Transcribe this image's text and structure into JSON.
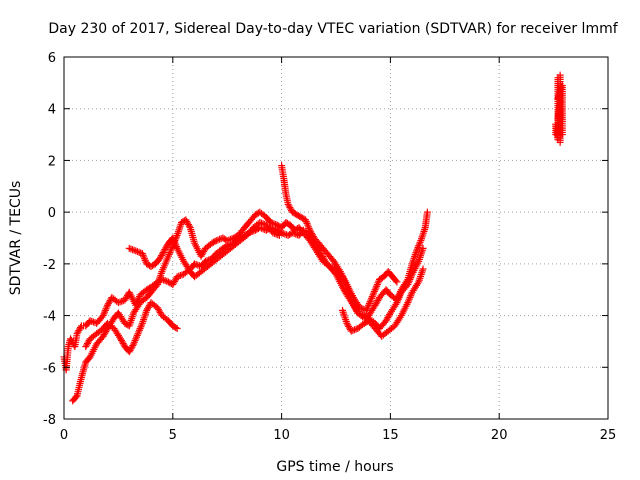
{
  "chart_data": {
    "type": "scatter",
    "title": "Day 230 of 2017, Sidereal Day-to-day VTEC variation (SDTVAR) for receiver lmmf",
    "xlabel": "GPS time / hours",
    "ylabel": "SDTVAR / TECUs",
    "xlim": [
      0,
      25
    ],
    "ylim": [
      -8,
      6
    ],
    "xticks": [
      "0",
      "5",
      "10",
      "15",
      "20",
      "25"
    ],
    "yticks": [
      "-8",
      "-6",
      "-4",
      "-2",
      "0",
      "2",
      "4",
      "6"
    ],
    "grid": true,
    "marker": "+",
    "color": "#ff0000",
    "series": [
      {
        "name": "",
        "points": [
          [
            0.0,
            -5.6
          ],
          [
            0.1,
            -6.1
          ],
          [
            0.2,
            -5.2
          ],
          [
            0.3,
            -4.9
          ],
          [
            0.5,
            -5.2
          ],
          [
            0.6,
            -4.7
          ],
          [
            0.8,
            -4.4
          ],
          [
            1.0,
            -4.4
          ],
          [
            1.2,
            -4.2
          ],
          [
            1.5,
            -4.3
          ],
          [
            1.8,
            -4.0
          ],
          [
            2.0,
            -3.6
          ],
          [
            2.2,
            -3.3
          ],
          [
            2.5,
            -3.5
          ],
          [
            2.8,
            -3.4
          ],
          [
            3.0,
            -3.1
          ],
          [
            3.3,
            -3.6
          ],
          [
            3.5,
            -3.2
          ],
          [
            3.8,
            -3.0
          ],
          [
            4.0,
            -2.9
          ],
          [
            4.3,
            -2.7
          ],
          [
            4.5,
            -2.6
          ],
          [
            4.8,
            -2.7
          ],
          [
            5.0,
            -2.8
          ],
          [
            5.2,
            -2.5
          ],
          [
            5.5,
            -2.4
          ],
          [
            5.8,
            -2.2
          ],
          [
            6.0,
            -2.0
          ],
          [
            6.3,
            -2.1
          ],
          [
            6.5,
            -1.9
          ],
          [
            6.8,
            -1.8
          ],
          [
            7.0,
            -1.6
          ],
          [
            7.3,
            -1.4
          ],
          [
            7.5,
            -1.3
          ],
          [
            7.8,
            -1.2
          ],
          [
            8.0,
            -1.0
          ],
          [
            8.3,
            -0.9
          ],
          [
            8.5,
            -0.8
          ],
          [
            8.8,
            -0.7
          ],
          [
            9.0,
            -0.6
          ],
          [
            9.3,
            -0.7
          ],
          [
            9.5,
            -0.6
          ],
          [
            9.8,
            -0.7
          ],
          [
            10.0,
            -0.8
          ],
          [
            10.3,
            -0.9
          ],
          [
            10.5,
            -0.8
          ],
          [
            10.8,
            -0.9
          ],
          [
            11.0,
            -0.7
          ],
          [
            11.3,
            -0.9
          ],
          [
            11.5,
            -1.2
          ],
          [
            11.8,
            -1.6
          ],
          [
            12.0,
            -1.9
          ],
          [
            12.3,
            -2.2
          ],
          [
            12.5,
            -2.4
          ],
          [
            12.8,
            -2.9
          ],
          [
            13.0,
            -3.2
          ],
          [
            13.3,
            -3.6
          ],
          [
            13.5,
            -3.9
          ],
          [
            13.8,
            -4.0
          ],
          [
            14.0,
            -4.1
          ],
          [
            14.3,
            -4.3
          ],
          [
            14.5,
            -4.5
          ],
          [
            14.8,
            -4.2
          ],
          [
            15.0,
            -3.9
          ],
          [
            15.3,
            -3.5
          ],
          [
            15.5,
            -3.1
          ],
          [
            15.8,
            -2.8
          ],
          [
            16.0,
            -2.4
          ],
          [
            16.3,
            -1.9
          ],
          [
            16.5,
            -1.4
          ]
        ]
      },
      {
        "name": "",
        "points": [
          [
            0.4,
            -7.3
          ],
          [
            0.6,
            -7.1
          ],
          [
            0.8,
            -6.4
          ],
          [
            1.0,
            -5.8
          ],
          [
            1.2,
            -5.6
          ],
          [
            1.5,
            -5.1
          ],
          [
            1.8,
            -4.8
          ],
          [
            2.0,
            -4.5
          ],
          [
            2.3,
            -4.1
          ],
          [
            2.5,
            -3.9
          ],
          [
            2.8,
            -4.3
          ],
          [
            3.0,
            -4.4
          ],
          [
            3.2,
            -3.9
          ],
          [
            3.5,
            -3.5
          ],
          [
            3.8,
            -3.3
          ],
          [
            4.0,
            -3.1
          ],
          [
            4.3,
            -2.8
          ],
          [
            4.5,
            -2.3
          ],
          [
            4.8,
            -1.7
          ],
          [
            5.0,
            -1.3
          ],
          [
            5.2,
            -0.9
          ],
          [
            5.4,
            -0.4
          ],
          [
            5.6,
            -0.3
          ],
          [
            5.8,
            -0.6
          ],
          [
            6.0,
            -1.2
          ],
          [
            6.3,
            -1.7
          ],
          [
            6.5,
            -1.4
          ],
          [
            6.8,
            -1.2
          ],
          [
            7.0,
            -1.1
          ],
          [
            7.3,
            -1.0
          ],
          [
            7.5,
            -1.1
          ],
          [
            7.8,
            -1.0
          ],
          [
            8.0,
            -0.9
          ],
          [
            8.3,
            -0.6
          ],
          [
            8.5,
            -0.4
          ],
          [
            8.8,
            -0.1
          ],
          [
            9.0,
            0.0
          ],
          [
            9.3,
            -0.2
          ],
          [
            9.5,
            -0.4
          ],
          [
            9.8,
            -0.5
          ],
          [
            10.0,
            -0.6
          ],
          [
            10.2,
            -0.4
          ],
          [
            10.4,
            -0.5
          ],
          [
            10.6,
            -0.7
          ],
          [
            10.8,
            -0.6
          ],
          [
            11.0,
            -0.8
          ],
          [
            11.3,
            -1.1
          ],
          [
            11.6,
            -1.5
          ],
          [
            11.9,
            -1.9
          ],
          [
            12.2,
            -2.1
          ],
          [
            12.5,
            -2.2
          ],
          [
            12.8,
            -2.5
          ],
          [
            13.0,
            -2.9
          ],
          [
            13.2,
            -3.4
          ],
          [
            13.5,
            -3.9
          ],
          [
            13.8,
            -4.1
          ],
          [
            14.0,
            -4.0
          ],
          [
            14.3,
            -3.6
          ],
          [
            14.5,
            -3.3
          ],
          [
            14.8,
            -3.0
          ],
          [
            15.0,
            -3.2
          ],
          [
            15.3,
            -3.4
          ],
          [
            15.5,
            -3.0
          ],
          [
            15.8,
            -2.6
          ],
          [
            16.0,
            -2.0
          ],
          [
            16.2,
            -1.5
          ],
          [
            16.4,
            -1.1
          ],
          [
            16.6,
            -0.6
          ],
          [
            16.7,
            0.0
          ]
        ]
      },
      {
        "name": "",
        "points": [
          [
            1.0,
            -5.2
          ],
          [
            1.2,
            -4.9
          ],
          [
            1.5,
            -4.7
          ],
          [
            1.8,
            -4.5
          ],
          [
            2.0,
            -4.3
          ],
          [
            2.3,
            -4.5
          ],
          [
            2.6,
            -4.9
          ],
          [
            2.8,
            -5.2
          ],
          [
            3.0,
            -5.4
          ],
          [
            3.2,
            -5.1
          ],
          [
            3.4,
            -4.7
          ],
          [
            3.6,
            -4.3
          ],
          [
            3.8,
            -3.8
          ],
          [
            4.0,
            -3.5
          ],
          [
            4.3,
            -3.7
          ],
          [
            4.5,
            -4.0
          ],
          [
            4.8,
            -4.2
          ],
          [
            5.0,
            -4.4
          ],
          [
            5.2,
            -4.5
          ]
        ]
      },
      {
        "name": "",
        "points": [
          [
            3.0,
            -1.4
          ],
          [
            3.3,
            -1.5
          ],
          [
            3.6,
            -1.6
          ],
          [
            3.8,
            -2.0
          ],
          [
            4.0,
            -2.1
          ],
          [
            4.2,
            -2.0
          ],
          [
            4.4,
            -1.8
          ],
          [
            4.6,
            -1.5
          ],
          [
            4.8,
            -1.2
          ],
          [
            5.0,
            -1.0
          ],
          [
            5.2,
            -1.4
          ],
          [
            5.5,
            -1.9
          ],
          [
            5.8,
            -2.3
          ],
          [
            6.0,
            -2.5
          ],
          [
            6.3,
            -2.3
          ],
          [
            6.6,
            -2.1
          ],
          [
            6.9,
            -1.9
          ],
          [
            7.2,
            -1.7
          ],
          [
            7.5,
            -1.5
          ],
          [
            7.8,
            -1.3
          ],
          [
            8.1,
            -1.1
          ],
          [
            8.4,
            -0.9
          ],
          [
            8.7,
            -0.6
          ],
          [
            9.0,
            -0.4
          ],
          [
            9.3,
            -0.5
          ],
          [
            9.6,
            -0.8
          ],
          [
            9.9,
            -0.9
          ]
        ]
      },
      {
        "name": "",
        "points": [
          [
            10.0,
            1.8
          ],
          [
            10.1,
            1.3
          ],
          [
            10.2,
            0.7
          ],
          [
            10.3,
            0.3
          ],
          [
            10.5,
            0.0
          ],
          [
            10.7,
            -0.1
          ],
          [
            10.9,
            -0.2
          ],
          [
            11.1,
            -0.3
          ],
          [
            11.3,
            -0.7
          ],
          [
            11.5,
            -1.0
          ],
          [
            11.8,
            -1.3
          ],
          [
            12.1,
            -1.6
          ],
          [
            12.4,
            -1.9
          ],
          [
            12.7,
            -2.3
          ],
          [
            13.0,
            -2.8
          ],
          [
            13.3,
            -3.3
          ],
          [
            13.6,
            -3.7
          ],
          [
            13.9,
            -3.8
          ],
          [
            14.1,
            -3.4
          ],
          [
            14.3,
            -3.0
          ],
          [
            14.5,
            -2.6
          ],
          [
            14.7,
            -2.5
          ],
          [
            14.9,
            -2.3
          ],
          [
            15.1,
            -2.5
          ],
          [
            15.3,
            -2.7
          ]
        ]
      },
      {
        "name": "",
        "points": [
          [
            12.8,
            -3.8
          ],
          [
            13.0,
            -4.3
          ],
          [
            13.2,
            -4.6
          ],
          [
            13.5,
            -4.5
          ],
          [
            13.8,
            -4.3
          ],
          [
            14.0,
            -4.2
          ],
          [
            14.3,
            -4.5
          ],
          [
            14.6,
            -4.8
          ],
          [
            14.9,
            -4.6
          ],
          [
            15.2,
            -4.4
          ],
          [
            15.5,
            -4.0
          ],
          [
            15.8,
            -3.5
          ],
          [
            16.0,
            -3.1
          ],
          [
            16.3,
            -2.7
          ],
          [
            16.5,
            -2.2
          ]
        ]
      },
      {
        "name": "",
        "points": [
          [
            22.6,
            3.0
          ],
          [
            22.6,
            3.4
          ],
          [
            22.7,
            2.8
          ],
          [
            22.7,
            3.3
          ],
          [
            22.7,
            3.8
          ],
          [
            22.7,
            4.2
          ],
          [
            22.7,
            4.6
          ],
          [
            22.7,
            5.2
          ],
          [
            22.8,
            2.7
          ],
          [
            22.8,
            3.1
          ],
          [
            22.8,
            3.6
          ],
          [
            22.8,
            4.0
          ],
          [
            22.8,
            4.4
          ],
          [
            22.8,
            4.8
          ],
          [
            22.8,
            5.3
          ],
          [
            22.9,
            3.0
          ],
          [
            22.9,
            3.5
          ],
          [
            22.9,
            4.1
          ],
          [
            22.9,
            4.5
          ],
          [
            22.9,
            4.9
          ],
          [
            22.8,
            4.7
          ],
          [
            22.7,
            4.4
          ],
          [
            22.8,
            4.3
          ],
          [
            22.7,
            3.6
          ]
        ]
      }
    ]
  }
}
